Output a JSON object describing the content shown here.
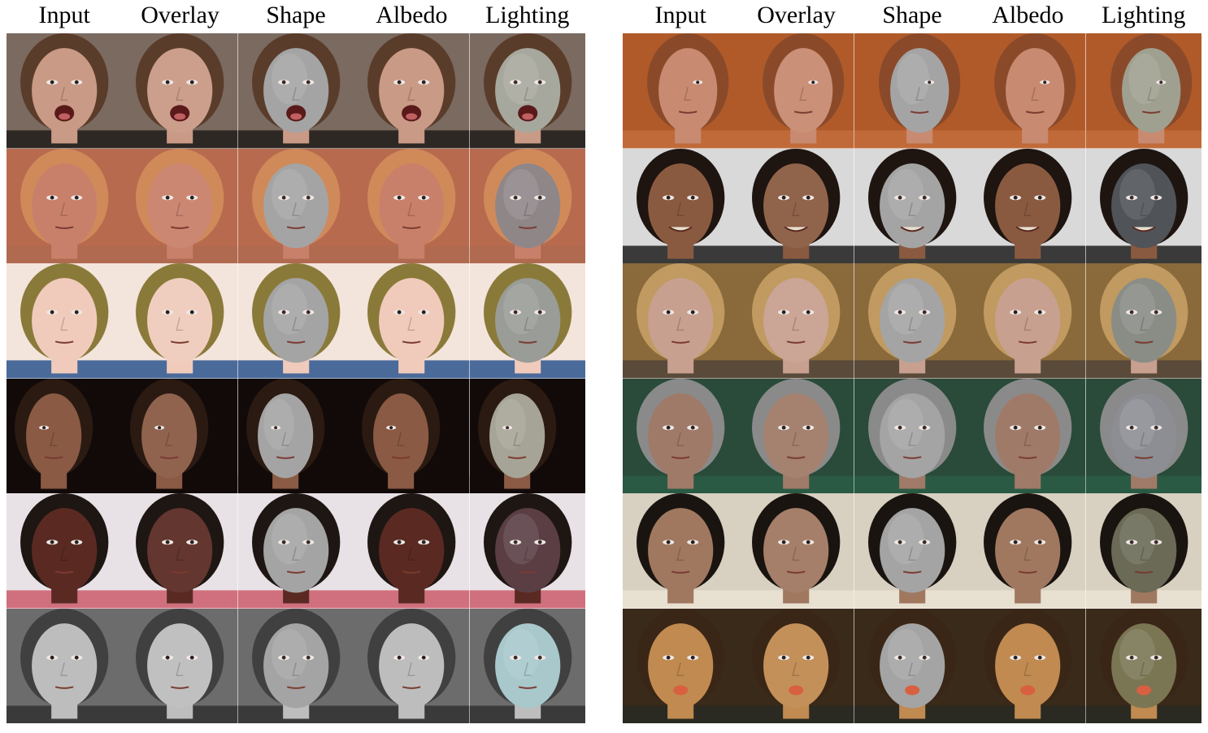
{
  "columns": [
    "Input",
    "Overlay",
    "Shape",
    "Albedo",
    "Lighting"
  ],
  "panels": [
    {
      "id": "left",
      "rows": [
        {
          "bg": "#7a6a60",
          "skin": "#c99a86",
          "hair": "#5a3c2a",
          "shirt": "#2e2824",
          "light": "#a7a89d",
          "mouth": "open",
          "pose": "front"
        },
        {
          "bg": "#b86a4e",
          "skin": "#c9806a",
          "hair": "#d08a5a",
          "shirt": "#b06a50",
          "light": "#8f8688",
          "mouth": "closed",
          "pose": "front"
        },
        {
          "bg": "#f3e4dc",
          "skin": "#f0cbbb",
          "hair": "#8a7a3a",
          "shirt": "#4a6a9a",
          "light": "#9a9c98",
          "mouth": "closed",
          "pose": "front"
        },
        {
          "bg": "#120a08",
          "skin": "#8a5a44",
          "hair": "#2a1a12",
          "shirt": "#120a08",
          "light": "#a6a496",
          "mouth": "closed",
          "pose": "profile-left"
        },
        {
          "bg": "#e8e2e6",
          "skin": "#5a2a22",
          "hair": "#1e1612",
          "shirt": "#d0707e",
          "light": "#5a3e44",
          "mouth": "closed",
          "pose": "front"
        },
        {
          "bg": "#6c6c6c",
          "skin": "#bdbdbd",
          "hair": "#404040",
          "shirt": "#3a3a3a",
          "light": "#a8c8cc",
          "mouth": "closed",
          "pose": "front"
        }
      ]
    },
    {
      "id": "right",
      "rows": [
        {
          "bg": "#b05a2a",
          "skin": "#c88a70",
          "hair": "#8a4a2a",
          "shirt": "#c06a3a",
          "light": "#a0a090",
          "mouth": "closed",
          "pose": "profile-right"
        },
        {
          "bg": "#d9d9d9",
          "skin": "#8a5a40",
          "hair": "#1e1410",
          "shirt": "#3a3a3a",
          "light": "#505458",
          "mouth": "smile",
          "pose": "front"
        },
        {
          "bg": "#8a6a3a",
          "skin": "#c8a090",
          "hair": "#c09a60",
          "shirt": "#5a4a3a",
          "light": "#8a8c86",
          "mouth": "closed",
          "pose": "front"
        },
        {
          "bg": "#2a4a3a",
          "skin": "#a07a68",
          "hair": "#8a8a8a",
          "shirt": "#2a5a44",
          "light": "#8c8e94",
          "mouth": "closed",
          "pose": "front"
        },
        {
          "bg": "#d8d0c0",
          "skin": "#a07860",
          "hair": "#1a1410",
          "shirt": "#e8e0d0",
          "light": "#6a6a56",
          "mouth": "closed",
          "pose": "front"
        },
        {
          "bg": "#3a2a1a",
          "skin": "#c08a50",
          "hair": "#3a2616",
          "shirt": "#2a2a22",
          "light": "#7a7654",
          "mouth": "tongue",
          "pose": "front"
        }
      ]
    }
  ]
}
